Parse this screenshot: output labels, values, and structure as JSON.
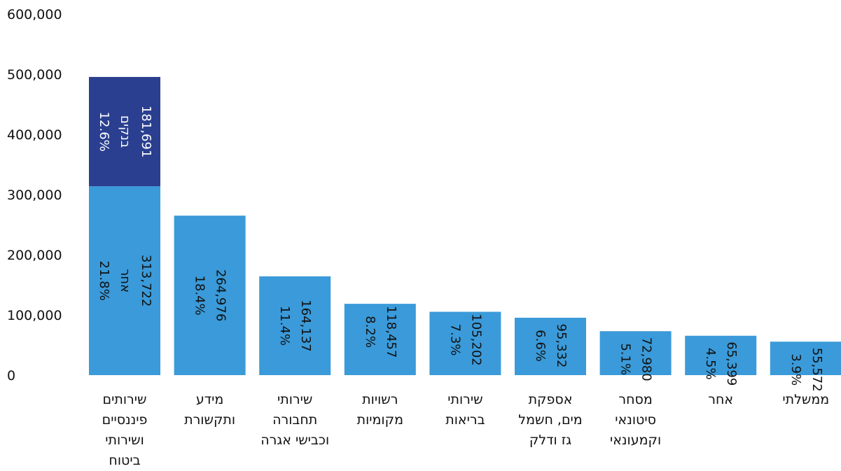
{
  "chart_data": {
    "type": "bar",
    "stacked": true,
    "categories": [
      [
        "שירותים",
        "פיננסיים",
        "ושירותי",
        "ביטוח"
      ],
      [
        "מידע",
        "ותקשורת"
      ],
      [
        "שירותי",
        "תחבורה",
        "וכבישי אגרה"
      ],
      [
        "רשויות",
        "מקומיות"
      ],
      [
        "שירותי",
        "בריאות"
      ],
      [
        "אספקת",
        "מים, חשמל",
        "גז ודלק"
      ],
      [
        "מסחר",
        "סיטונאי",
        "וקמעונאי"
      ],
      [
        "אחר"
      ],
      [
        "ממשלתי"
      ]
    ],
    "series": [
      {
        "color": "#3b9ad9",
        "values": [
          313722,
          264976,
          164137,
          118457,
          105202,
          95332,
          72980,
          65399,
          55572
        ],
        "value_labels": [
          "313,722",
          "264,976",
          "164,137",
          "118,457",
          "105,202",
          "95,332",
          "72,980",
          "65,399",
          "55,572"
        ],
        "percent_labels": [
          "21.8%",
          "18.4%",
          "11.4%",
          "8.2%",
          "7.3%",
          "6.6%",
          "5.1%",
          "4.5%",
          "3.9%"
        ],
        "segment_names": [
          "אחר",
          "",
          "",
          "",
          "",
          "",
          "",
          "",
          ""
        ]
      },
      {
        "color": "#2a3f8f",
        "values": [
          181691,
          0,
          0,
          0,
          0,
          0,
          0,
          0,
          0
        ],
        "value_labels": [
          "181,691",
          "",
          "",
          "",
          "",
          "",
          "",
          "",
          ""
        ],
        "percent_labels": [
          "12.6%",
          "",
          "",
          "",
          "",
          "",
          "",
          "",
          ""
        ],
        "segment_names": [
          "בנקים",
          "",
          "",
          "",
          "",
          "",
          "",
          "",
          ""
        ]
      }
    ],
    "yticks": [
      0,
      100000,
      200000,
      300000,
      400000,
      500000,
      600000
    ],
    "ytick_labels": [
      "0",
      "100,000",
      "200,000",
      "300,000",
      "400,000",
      "500,000",
      "600,000"
    ],
    "ylim": [
      0,
      600000
    ],
    "grid": false,
    "legend": "none"
  }
}
